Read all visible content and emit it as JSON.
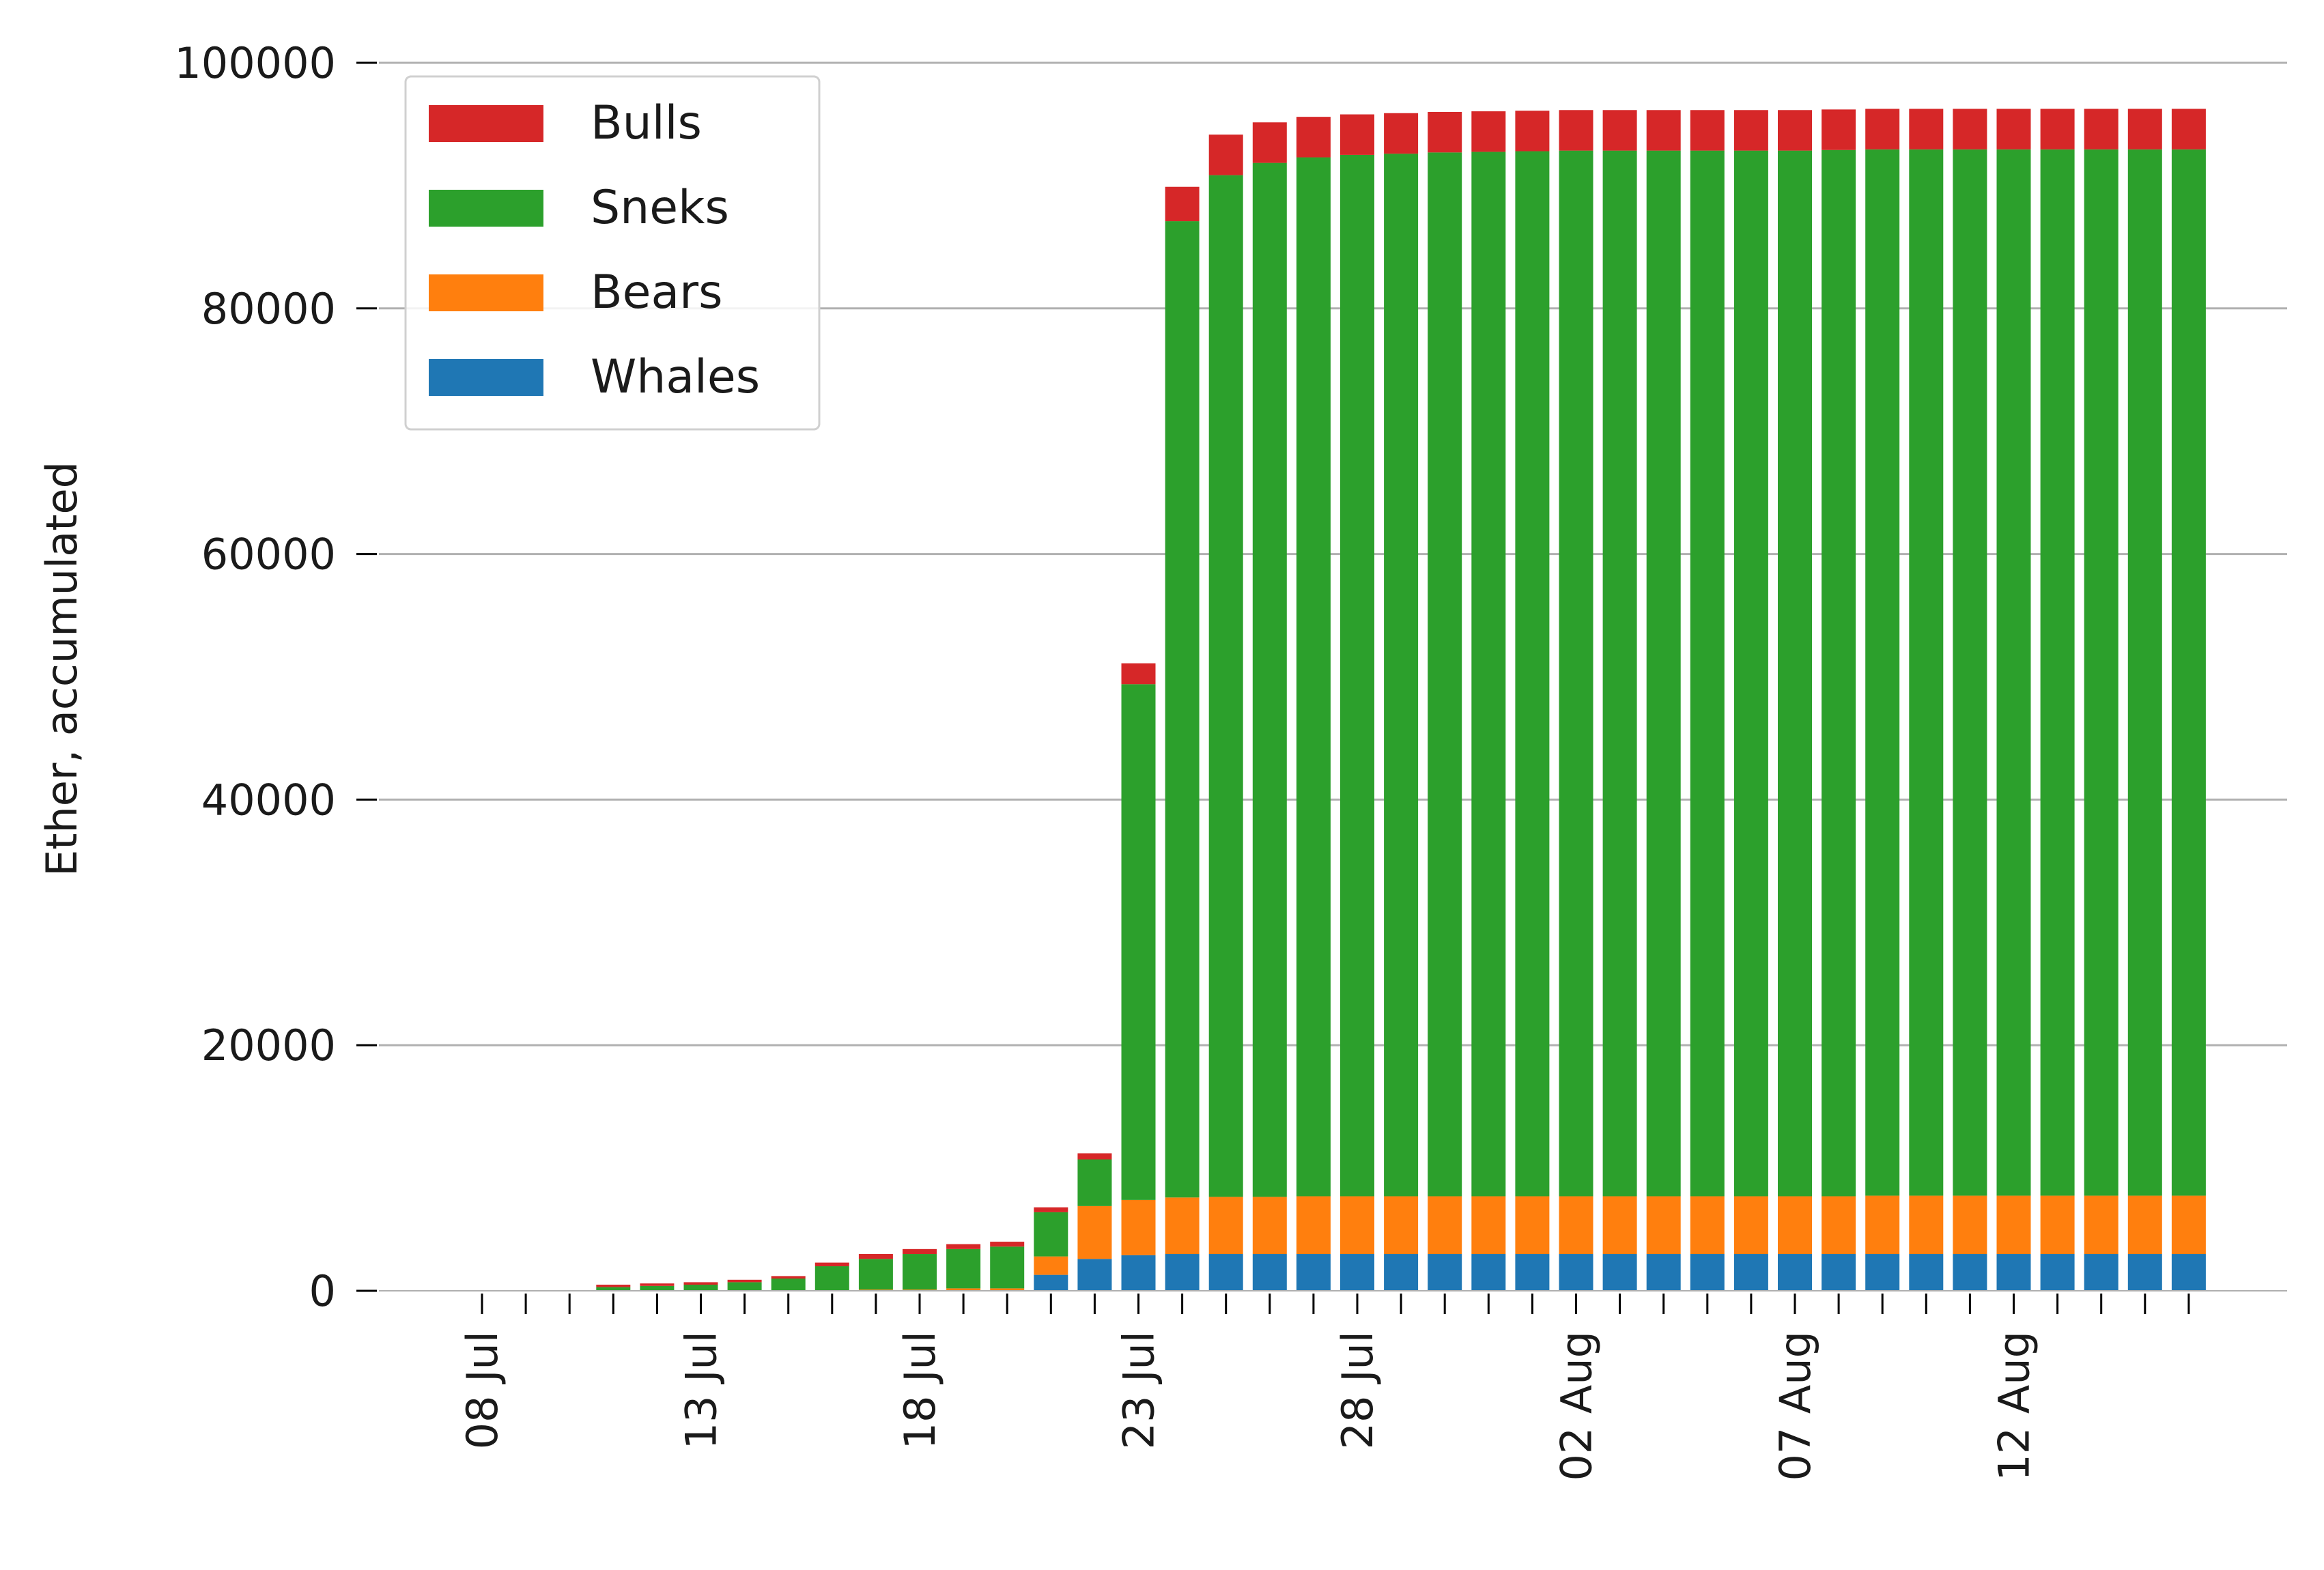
{
  "chart_data": {
    "type": "bar",
    "stacked": true,
    "title": "",
    "xlabel": "",
    "ylabel": "Ether, accumulated",
    "ylim": [
      0,
      100000
    ],
    "y_ticks": [
      0,
      20000,
      40000,
      60000,
      80000,
      100000
    ],
    "y_tick_labels": [
      "0",
      "20000",
      "40000",
      "60000",
      "80000",
      "100000"
    ],
    "grid": "horizontal",
    "legend_position": "top-left",
    "categories": [
      "08 Jul",
      "09 Jul",
      "10 Jul",
      "11 Jul",
      "12 Jul",
      "13 Jul",
      "14 Jul",
      "15 Jul",
      "16 Jul",
      "17 Jul",
      "18 Jul",
      "19 Jul",
      "20 Jul",
      "21 Jul",
      "22 Jul",
      "23 Jul",
      "24 Jul",
      "25 Jul",
      "26 Jul",
      "27 Jul",
      "28 Jul",
      "29 Jul",
      "30 Jul",
      "31 Jul",
      "01 Aug",
      "02 Aug",
      "03 Aug",
      "04 Aug",
      "05 Aug",
      "06 Aug",
      "07 Aug",
      "08 Aug",
      "09 Aug",
      "10 Aug",
      "11 Aug",
      "12 Aug",
      "13 Aug",
      "14 Aug",
      "15 Aug",
      "16 Aug"
    ],
    "x_tick_labels": [
      "08 Jul",
      "13 Jul",
      "18 Jul",
      "23 Jul",
      "28 Jul",
      "02 Aug",
      "07 Aug",
      "12 Aug"
    ],
    "series": [
      {
        "name": "Whales",
        "color": "#1f77b4",
        "values": [
          0,
          0,
          0,
          0,
          0,
          0,
          0,
          0,
          0,
          0,
          0,
          0,
          0,
          1300,
          2600,
          2900,
          3000,
          3000,
          3000,
          3000,
          3000,
          3000,
          3000,
          3000,
          3000,
          3000,
          3000,
          3000,
          3000,
          3000,
          3000,
          3000,
          3000,
          3000,
          3000,
          3000,
          3000,
          3000,
          3000,
          3000
        ]
      },
      {
        "name": "Bears",
        "color": "#ff7f0e",
        "values": [
          0,
          0,
          0,
          0,
          0,
          0,
          0,
          0,
          0,
          100,
          100,
          200,
          200,
          1500,
          4300,
          4500,
          4600,
          4650,
          4650,
          4700,
          4700,
          4700,
          4700,
          4700,
          4700,
          4700,
          4700,
          4700,
          4700,
          4700,
          4700,
          4700,
          4750,
          4750,
          4750,
          4750,
          4750,
          4750,
          4750,
          4750
        ]
      },
      {
        "name": "Sneks",
        "color": "#2ca02c",
        "values": [
          0,
          0,
          0,
          300,
          400,
          500,
          700,
          1000,
          2000,
          2500,
          2900,
          3200,
          3400,
          3600,
          3800,
          42000,
          79500,
          83200,
          84200,
          84600,
          84800,
          84900,
          85000,
          85050,
          85100,
          85150,
          85150,
          85150,
          85150,
          85150,
          85150,
          85200,
          85200,
          85200,
          85200,
          85200,
          85200,
          85200,
          85200,
          85200
        ]
      },
      {
        "name": "Bulls",
        "color": "#d62728",
        "values": [
          0,
          0,
          0,
          200,
          200,
          200,
          200,
          200,
          300,
          400,
          400,
          400,
          400,
          400,
          500,
          1700,
          2800,
          3300,
          3300,
          3300,
          3300,
          3300,
          3300,
          3300,
          3300,
          3300,
          3300,
          3300,
          3300,
          3300,
          3300,
          3300,
          3300,
          3300,
          3300,
          3300,
          3300,
          3300,
          3300,
          3300
        ]
      }
    ]
  }
}
